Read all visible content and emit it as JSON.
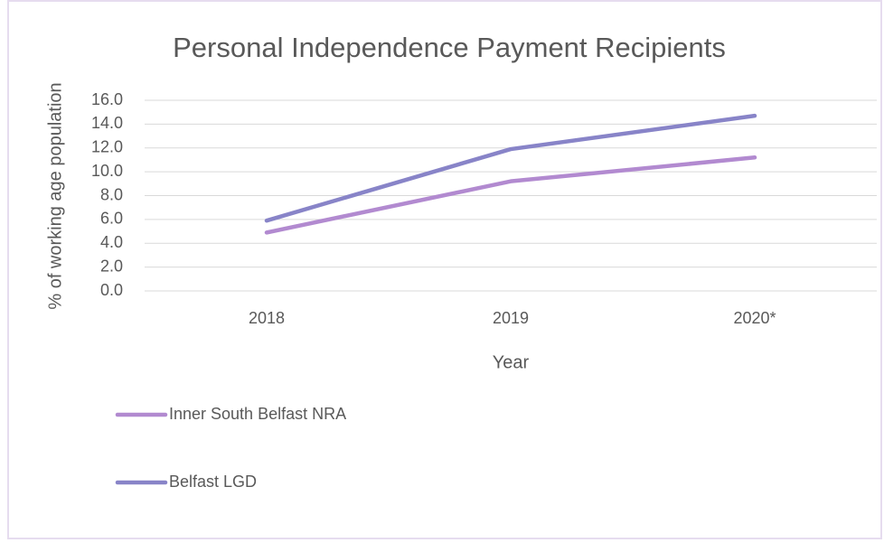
{
  "chart_data": {
    "type": "line",
    "title": "Personal Independence Payment Recipients",
    "x_label": "Year",
    "y_label": "% of working age population",
    "categories": [
      "2018",
      "2019",
      "2020*"
    ],
    "series": [
      {
        "name": "Inner South Belfast NRA",
        "color": "#b28ad0",
        "values": [
          4.9,
          9.2,
          11.2
        ]
      },
      {
        "name": "Belfast LGD",
        "color": "#8884c8",
        "values": [
          5.9,
          11.9,
          14.7
        ]
      }
    ],
    "ylim": [
      0,
      16
    ],
    "yticks": [
      {
        "value": 0,
        "label": "0.0"
      },
      {
        "value": 2,
        "label": "2.0"
      },
      {
        "value": 4,
        "label": "4.0"
      },
      {
        "value": 6,
        "label": "6.0"
      },
      {
        "value": 8,
        "label": "8.0"
      },
      {
        "value": 10,
        "label": "10.0"
      },
      {
        "value": 12,
        "label": "12.0"
      },
      {
        "value": 14,
        "label": "14.0"
      },
      {
        "value": 16,
        "label": "16.0"
      }
    ],
    "grid": true,
    "legend": "bottom-left"
  }
}
